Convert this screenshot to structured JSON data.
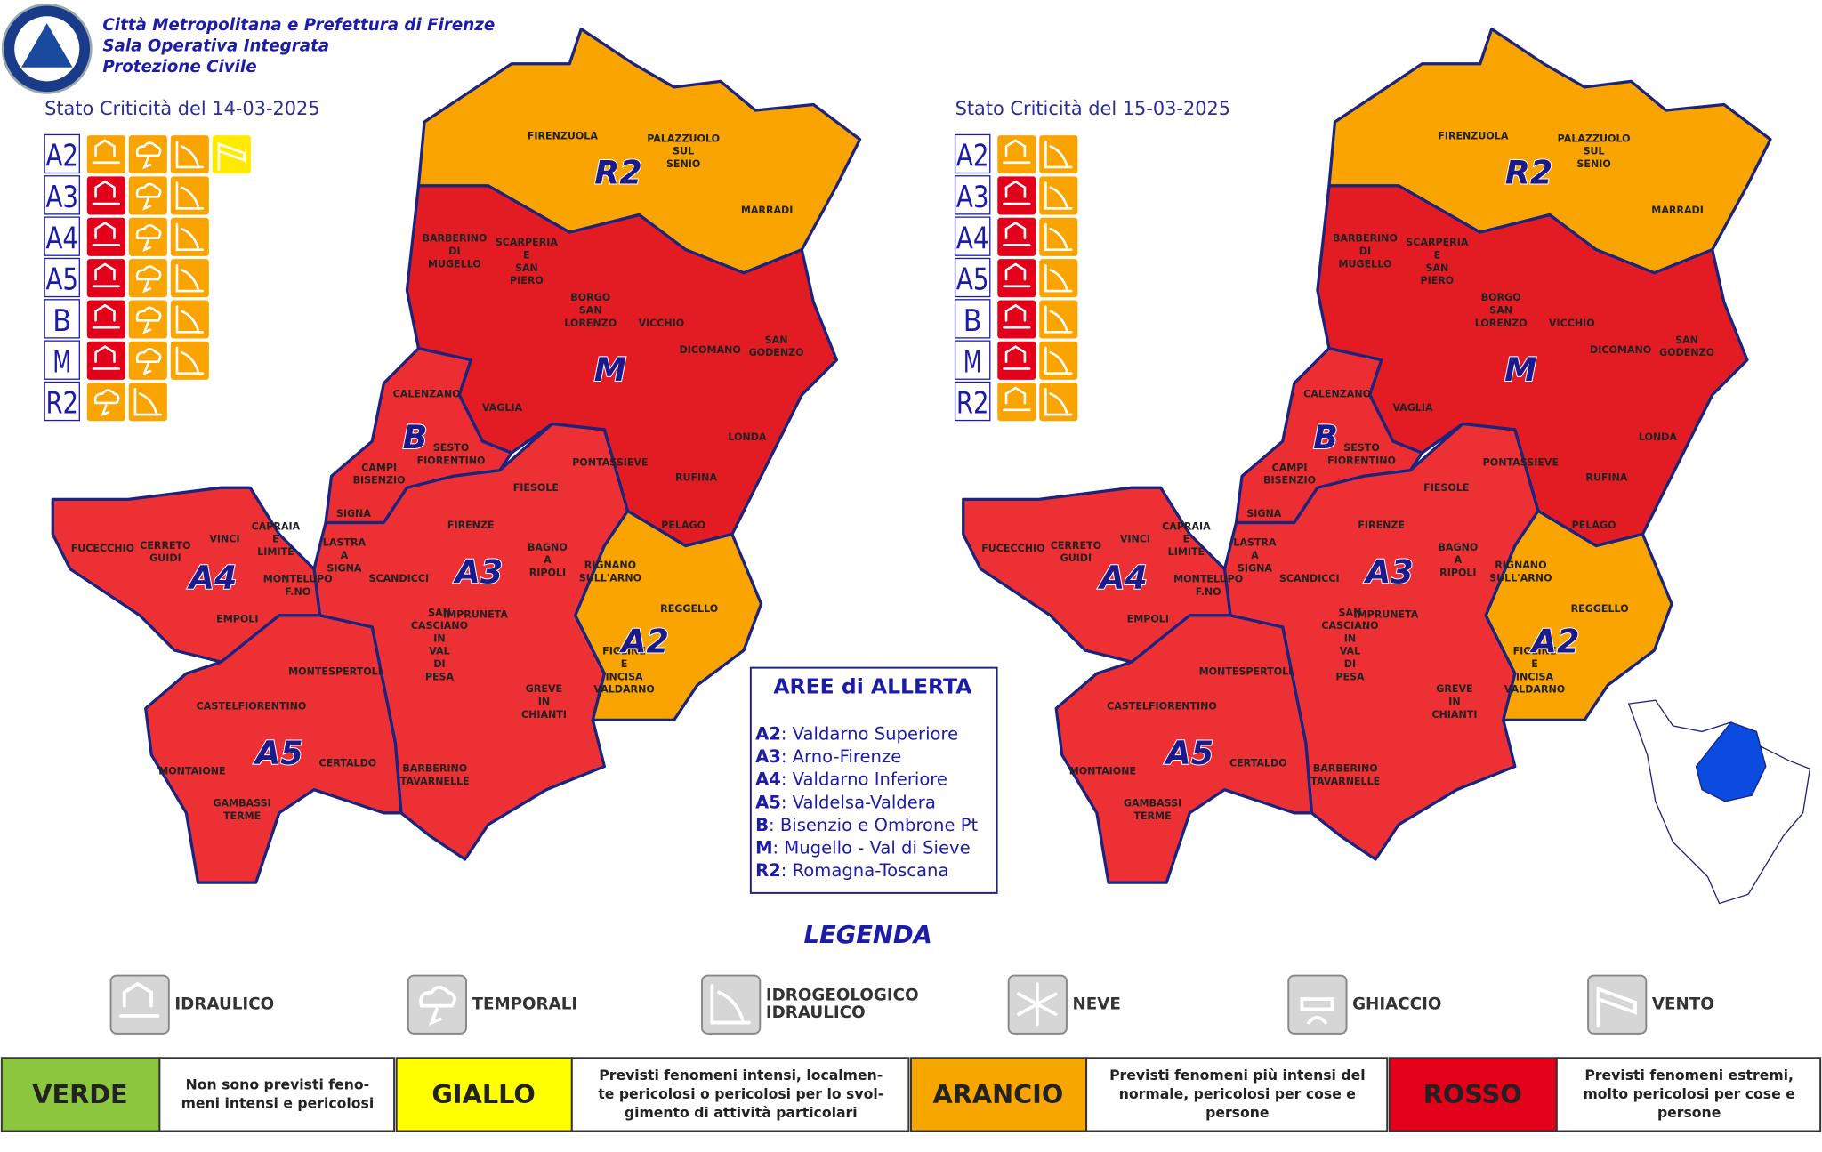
{
  "header": {
    "lines": [
      "Città Metropolitana e Prefettura di Firenze",
      "Sala Operativa Integrata",
      "Protezione Civile"
    ]
  },
  "maps": [
    {
      "title": "Stato Criticità del 14-03-2025",
      "zones": [
        {
          "code": "R2",
          "color": "#f9a400"
        },
        {
          "code": "M",
          "color": "#e31c24"
        },
        {
          "code": "B",
          "color": "#ec2e32"
        },
        {
          "code": "A3",
          "color": "#ec3034"
        },
        {
          "code": "A2",
          "color": "#f9a400"
        },
        {
          "code": "A4",
          "color": "#ec3034"
        },
        {
          "code": "A5",
          "color": "#ec3034"
        }
      ],
      "rows": [
        {
          "code": "A2",
          "icons": [
            {
              "kind": 0,
              "color": "#f9a400"
            },
            {
              "kind": 1,
              "color": "#f9a400"
            },
            {
              "kind": 2,
              "color": "#f9a400"
            },
            {
              "kind": 5,
              "color": "#ffea00"
            }
          ]
        },
        {
          "code": "A3",
          "icons": [
            {
              "kind": 0,
              "color": "#e2001a"
            },
            {
              "kind": 1,
              "color": "#f9a400"
            },
            {
              "kind": 2,
              "color": "#f9a400"
            }
          ]
        },
        {
          "code": "A4",
          "icons": [
            {
              "kind": 0,
              "color": "#e2001a"
            },
            {
              "kind": 1,
              "color": "#f9a400"
            },
            {
              "kind": 2,
              "color": "#f9a400"
            }
          ]
        },
        {
          "code": "A5",
          "icons": [
            {
              "kind": 0,
              "color": "#e2001a"
            },
            {
              "kind": 1,
              "color": "#f9a400"
            },
            {
              "kind": 2,
              "color": "#f9a400"
            }
          ]
        },
        {
          "code": "B",
          "icons": [
            {
              "kind": 0,
              "color": "#e2001a"
            },
            {
              "kind": 1,
              "color": "#f9a400"
            },
            {
              "kind": 2,
              "color": "#f9a400"
            }
          ]
        },
        {
          "code": "M",
          "icons": [
            {
              "kind": 0,
              "color": "#e2001a"
            },
            {
              "kind": 1,
              "color": "#f9a400"
            },
            {
              "kind": 2,
              "color": "#f9a400"
            }
          ]
        },
        {
          "code": "R2",
          "icons": [
            {
              "kind": 1,
              "color": "#f9a400"
            },
            {
              "kind": 2,
              "color": "#f9a400"
            }
          ]
        }
      ]
    },
    {
      "title": "Stato Criticità del 15-03-2025",
      "zones": [
        {
          "code": "R2",
          "color": "#f9a400"
        },
        {
          "code": "M",
          "color": "#e31c24"
        },
        {
          "code": "B",
          "color": "#ec2e32"
        },
        {
          "code": "A3",
          "color": "#ec3034"
        },
        {
          "code": "A2",
          "color": "#f9a400"
        },
        {
          "code": "A4",
          "color": "#ec3034"
        },
        {
          "code": "A5",
          "color": "#ec3034"
        }
      ],
      "rows": [
        {
          "code": "A2",
          "icons": [
            {
              "kind": 0,
              "color": "#f9a400"
            },
            {
              "kind": 2,
              "color": "#f9a400"
            }
          ]
        },
        {
          "code": "A3",
          "icons": [
            {
              "kind": 0,
              "color": "#e2001a"
            },
            {
              "kind": 2,
              "color": "#f9a400"
            }
          ]
        },
        {
          "code": "A4",
          "icons": [
            {
              "kind": 0,
              "color": "#e2001a"
            },
            {
              "kind": 2,
              "color": "#f9a400"
            }
          ]
        },
        {
          "code": "A5",
          "icons": [
            {
              "kind": 0,
              "color": "#e2001a"
            },
            {
              "kind": 2,
              "color": "#f9a400"
            }
          ]
        },
        {
          "code": "B",
          "icons": [
            {
              "kind": 0,
              "color": "#e2001a"
            },
            {
              "kind": 2,
              "color": "#f9a400"
            }
          ]
        },
        {
          "code": "M",
          "icons": [
            {
              "kind": 0,
              "color": "#e2001a"
            },
            {
              "kind": 2,
              "color": "#f9a400"
            }
          ]
        },
        {
          "code": "R2",
          "icons": [
            {
              "kind": 0,
              "color": "#f9a400"
            },
            {
              "kind": 2,
              "color": "#f9a400"
            }
          ]
        }
      ]
    }
  ],
  "municipalities": [
    [
      "FIRENZUOLA"
    ],
    [
      "PALAZZUOLO",
      "SUL",
      "SENIO"
    ],
    [
      "MARRADI"
    ],
    [
      "BARBERINO",
      "DI",
      "MUGELLO"
    ],
    [
      "SCARPERIA",
      "E",
      "SAN",
      "PIERO"
    ],
    [
      "BORGO",
      "SAN",
      "LORENZO"
    ],
    [
      "VICCHIO"
    ],
    [
      "DICOMANO"
    ],
    [
      "SAN",
      "GODENZO"
    ],
    [
      "CALENZANO"
    ],
    [
      "VAGLIA"
    ],
    [
      "LONDA"
    ],
    [
      "SESTO",
      "FIORENTINO"
    ],
    [
      "CAMPI",
      "BISENZIO"
    ],
    [
      "PONTASSIEVE"
    ],
    [
      "RUFINA"
    ],
    [
      "FIESOLE"
    ],
    [
      "SIGNA"
    ],
    [
      "PELAGO"
    ],
    [
      "FIRENZE"
    ],
    [
      "FUCECCHIO"
    ],
    [
      "CERRETO",
      "GUIDI"
    ],
    [
      "VINCI"
    ],
    [
      "CAPRAIA",
      "E",
      "LIMITE"
    ],
    [
      "LASTRA",
      "A",
      "SIGNA"
    ],
    [
      "SCANDICCI"
    ],
    [
      "BAGNO",
      "A",
      "RIPOLI"
    ],
    [
      "RIGNANO",
      "SULL'ARNO"
    ],
    [
      "MONTELUPO",
      "F.NO"
    ],
    [
      "EMPOLI"
    ],
    [
      "IMPRUNETA"
    ],
    [
      "REGGELLO"
    ],
    [
      "SAN",
      "CASCIANO",
      "IN",
      "VAL",
      "DI",
      "PESA"
    ],
    [
      "MONTESPERTOLI"
    ],
    [
      "FIGLINE",
      "E",
      "INCISA",
      "VALDARNO"
    ],
    [
      "CASTELFIORENTINO"
    ],
    [
      "GREVE",
      "IN",
      "CHIANTI"
    ],
    [
      "MONTAIONE"
    ],
    [
      "CERTALDO"
    ],
    [
      "BARBERINO",
      "TAVARNELLE"
    ],
    [
      "GAMBASSI",
      "TERME"
    ]
  ],
  "areas": {
    "title": "AREE di ALLERTA",
    "items": [
      {
        "code": "A2",
        "desc": ": Valdarno Superiore"
      },
      {
        "code": "A3",
        "desc": ": Arno-Firenze"
      },
      {
        "code": "A4",
        "desc": ": Valdarno Inferiore"
      },
      {
        "code": "A5",
        "desc": ": Valdelsa-Valdera"
      },
      {
        "code": "B",
        "desc": ": Bisenzio e Ombrone Pt"
      },
      {
        "code": "M",
        "desc": ": Mugello - Val di Sieve"
      },
      {
        "code": "R2",
        "desc": ": Romagna-Toscana"
      }
    ]
  },
  "legend": {
    "title": "LEGENDA",
    "items": [
      [
        "IDRAULICO"
      ],
      [
        "TEMPORALI"
      ],
      [
        "IDROGEOLOGICO",
        "IDRAULICO"
      ],
      [
        "NEVE"
      ],
      [
        "GHIACCIO"
      ],
      [
        "VENTO"
      ]
    ]
  },
  "levels": [
    {
      "name": "VERDE",
      "color": "#8cc63f",
      "desc": [
        "Non sono previsti feno-",
        "meni intensi e pericolosi"
      ]
    },
    {
      "name": "GIALLO",
      "color": "#ffff00",
      "desc": [
        "Previsti fenomeni intensi, localmen-",
        "te pericolosi o pericolosi per lo svol-",
        "gimento di attività particolari"
      ]
    },
    {
      "name": "ARANCIO",
      "color": "#f7a600",
      "desc": [
        "Previsti fenomeni più intensi del",
        "normale, pericolosi per cose e",
        "persone"
      ]
    },
    {
      "name": "ROSSO",
      "color": "#e2001a",
      "desc": [
        "Previsti fenomeni estremi,",
        "molto pericolosi per cose e",
        "persone"
      ]
    }
  ]
}
